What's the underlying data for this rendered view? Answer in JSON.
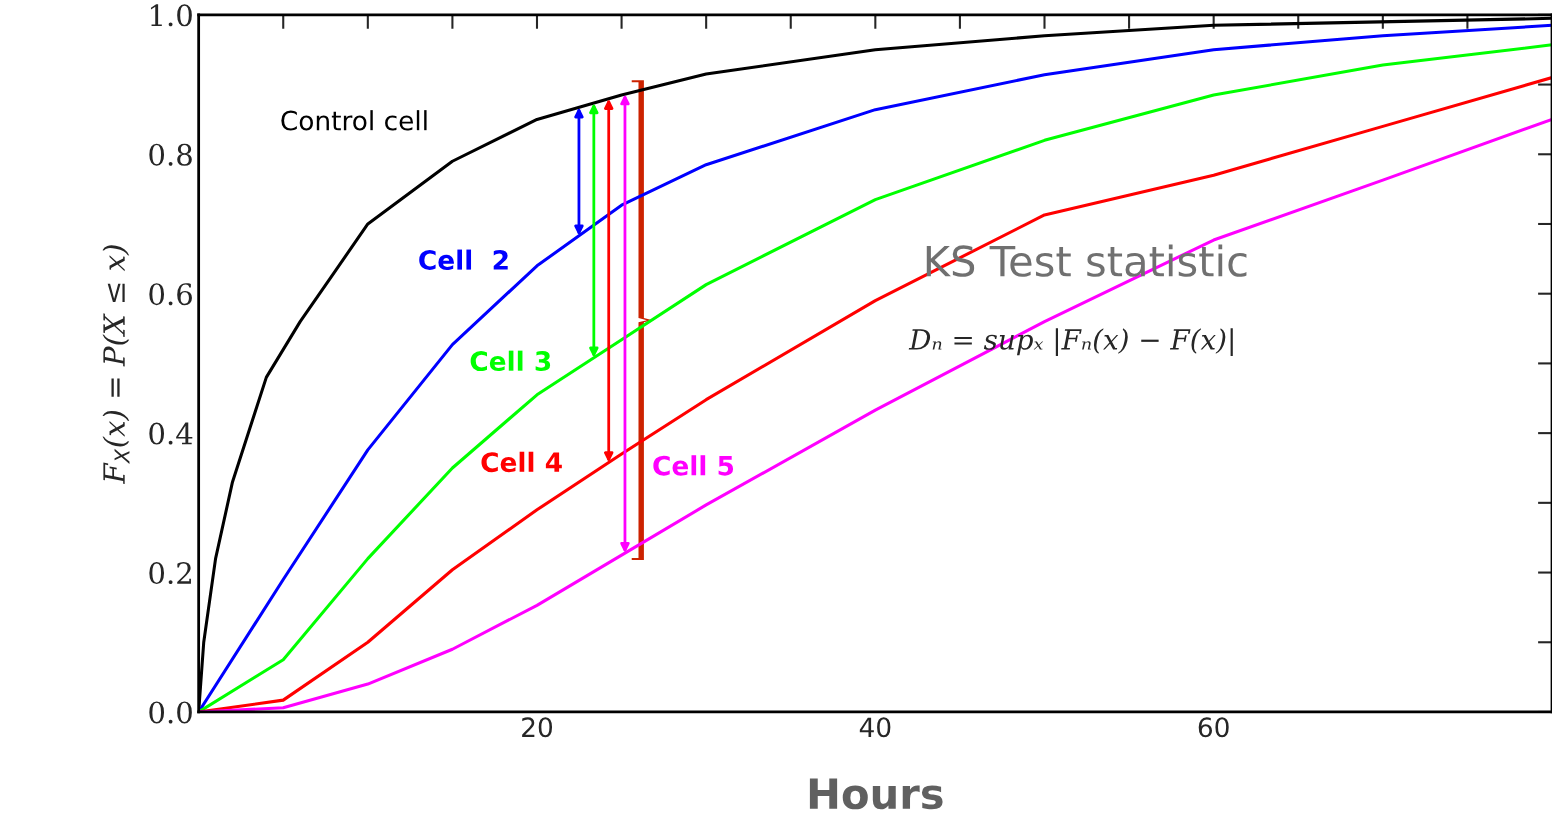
{
  "chart_data": {
    "type": "line",
    "xlabel": "Hours",
    "ylabel": "F$_{X}$(x) = P(X ≤ x)",
    "xlim": [
      0,
      80
    ],
    "ylim": [
      0,
      1
    ],
    "xticks": [
      {
        "value": 5,
        "label": null
      },
      {
        "value": 10,
        "label": null
      },
      {
        "value": 15,
        "label": null
      },
      20,
      {
        "value": 25,
        "label": null
      },
      {
        "value": 30,
        "label": null
      },
      {
        "value": 35,
        "label": null
      },
      40,
      {
        "value": 45,
        "label": null
      },
      {
        "value": 50,
        "label": null
      },
      {
        "value": 55,
        "label": null
      },
      60,
      {
        "value": 65,
        "label": null
      },
      {
        "value": 70,
        "label": null
      },
      {
        "value": 75,
        "label": null
      }
    ],
    "yticks": [
      {
        "value": 0,
        "label": "0.0"
      },
      {
        "value": 0.1,
        "label": null
      },
      {
        "value": 0.2,
        "label": "0.2"
      },
      {
        "value": 0.3,
        "label": null
      },
      {
        "value": 0.4,
        "label": "0.4"
      },
      {
        "value": 0.5,
        "label": null
      },
      {
        "value": 0.6,
        "label": "0.6"
      },
      {
        "value": 0.7,
        "label": null
      },
      {
        "value": 0.8,
        "label": "0.8"
      },
      {
        "value": 0.9,
        "label": null
      },
      {
        "value": 1.0,
        "label": "1.0"
      }
    ],
    "grid": false,
    "marker": "none",
    "line_style": "solid",
    "series": [
      {
        "color": "#000000",
        "x": [
          0,
          0.3,
          1,
          2,
          4,
          6,
          8,
          10,
          15,
          20,
          25,
          30,
          40,
          50,
          60,
          80
        ],
        "values": [
          0,
          0.1,
          0.22,
          0.33,
          0.48,
          0.56,
          0.63,
          0.7,
          0.79,
          0.85,
          0.885,
          0.915,
          0.95,
          0.97,
          0.985,
          0.995
        ]
      },
      {
        "color": "#0000ff",
        "x": [
          0,
          5,
          10,
          15,
          20,
          25,
          30,
          40,
          50,
          60,
          70,
          80
        ],
        "values": [
          0,
          0.19,
          0.376,
          0.527,
          0.64,
          0.727,
          0.785,
          0.864,
          0.914,
          0.95,
          0.97,
          0.985
        ]
      },
      {
        "color": "#00ff00",
        "x": [
          0,
          5,
          10,
          15,
          20,
          25,
          30,
          40,
          50,
          60,
          70,
          80
        ],
        "values": [
          0,
          0.075,
          0.22,
          0.35,
          0.455,
          0.534,
          0.613,
          0.735,
          0.82,
          0.885,
          0.928,
          0.957
        ]
      },
      {
        "color": "#ff0000",
        "x": [
          0,
          5,
          10,
          15,
          20,
          25,
          30,
          40,
          50,
          60,
          70,
          80
        ],
        "values": [
          0,
          0.017,
          0.1,
          0.204,
          0.29,
          0.37,
          0.448,
          0.59,
          0.713,
          0.77,
          0.84,
          0.91
        ]
      },
      {
        "color": "#ff00ff",
        "x": [
          0,
          5,
          10,
          15,
          20,
          25,
          30,
          40,
          50,
          60,
          70,
          80
        ],
        "values": [
          0,
          0.006,
          0.04,
          0.09,
          0.153,
          0.225,
          0.297,
          0.433,
          0.56,
          0.677,
          0.763,
          0.85
        ]
      }
    ],
    "annotations": [
      "Control cell",
      "Cell  2",
      "Cell 3",
      "Cell 4",
      "Cell 5",
      "KS Test statistic",
      "Dₙ = supₓ |Fₙ(x) − F(x)|"
    ]
  }
}
